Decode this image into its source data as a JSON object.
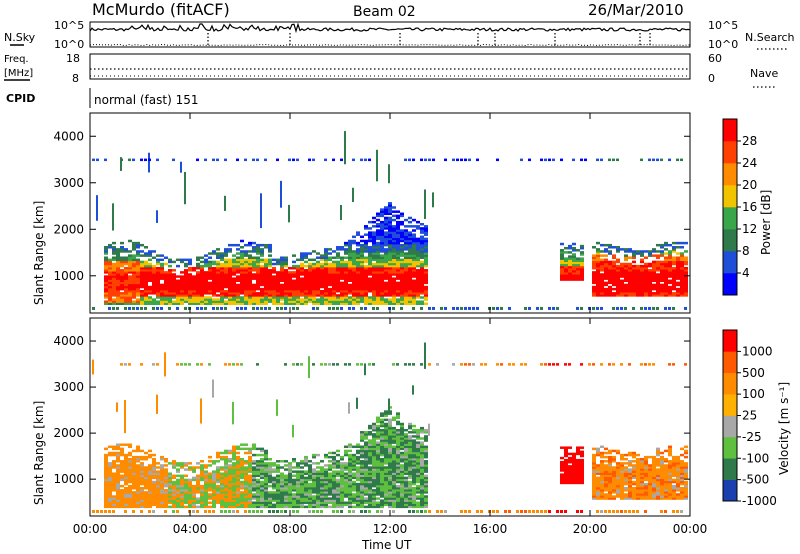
{
  "header": {
    "title": "McMurdo (fitACF)",
    "beam": "Beam 02",
    "date": "26/Mar/2010"
  },
  "top_panels": {
    "nsky_label": "N.Sky",
    "nsearch_label": "N.Search",
    "noise_ticks_left": [
      "10^5",
      "10^0"
    ],
    "noise_ticks_right": [
      "10^5",
      "10^0"
    ],
    "freq_label_line1": "Freq.",
    "freq_label_line2": "[MHz]",
    "freq_ticks": [
      "18",
      "8"
    ],
    "nave_label": "Nave",
    "nave_ticks": [
      "60",
      "0"
    ],
    "cpid_label": "CPID",
    "cpid_text": "normal (fast) 151"
  },
  "chart_data": [
    {
      "type": "heatmap",
      "name": "power",
      "ylabel": "Slant Range [km]",
      "y_ticks": [
        "1000",
        "2000",
        "3000",
        "4000"
      ],
      "ylim": [
        200,
        4500
      ],
      "colorbar_label": "Power [dB]",
      "colorbar_ticks": [
        "4",
        "8",
        "12",
        "16",
        "20",
        "24",
        "28"
      ],
      "colors": [
        "#0000ff",
        "#1f4fd8",
        "#2f7a4a",
        "#3aa64a",
        "#f2c400",
        "#ff8c00",
        "#ff4000",
        "#ff0000"
      ]
    },
    {
      "type": "heatmap",
      "name": "velocity",
      "ylabel": "Slant Range [km]",
      "y_ticks": [
        "1000",
        "2000",
        "3000",
        "4000"
      ],
      "ylim": [
        200,
        4500
      ],
      "colorbar_label": "Velocity [m s⁻¹]",
      "colorbar_ticks": [
        "1000",
        "500",
        "100",
        "25",
        "-25",
        "-100",
        "-500",
        "-1000"
      ],
      "colors": [
        "#1c3fb0",
        "#2f7a4a",
        "#5fbf3f",
        "#a8a8a8",
        "#ffb000",
        "#ff8c00",
        "#ff5a00",
        "#ff0000"
      ]
    }
  ],
  "x_axis": {
    "ticks": [
      "00:00",
      "04:00",
      "08:00",
      "12:00",
      "16:00",
      "20:00",
      "00:00"
    ],
    "label": "Time UT"
  }
}
